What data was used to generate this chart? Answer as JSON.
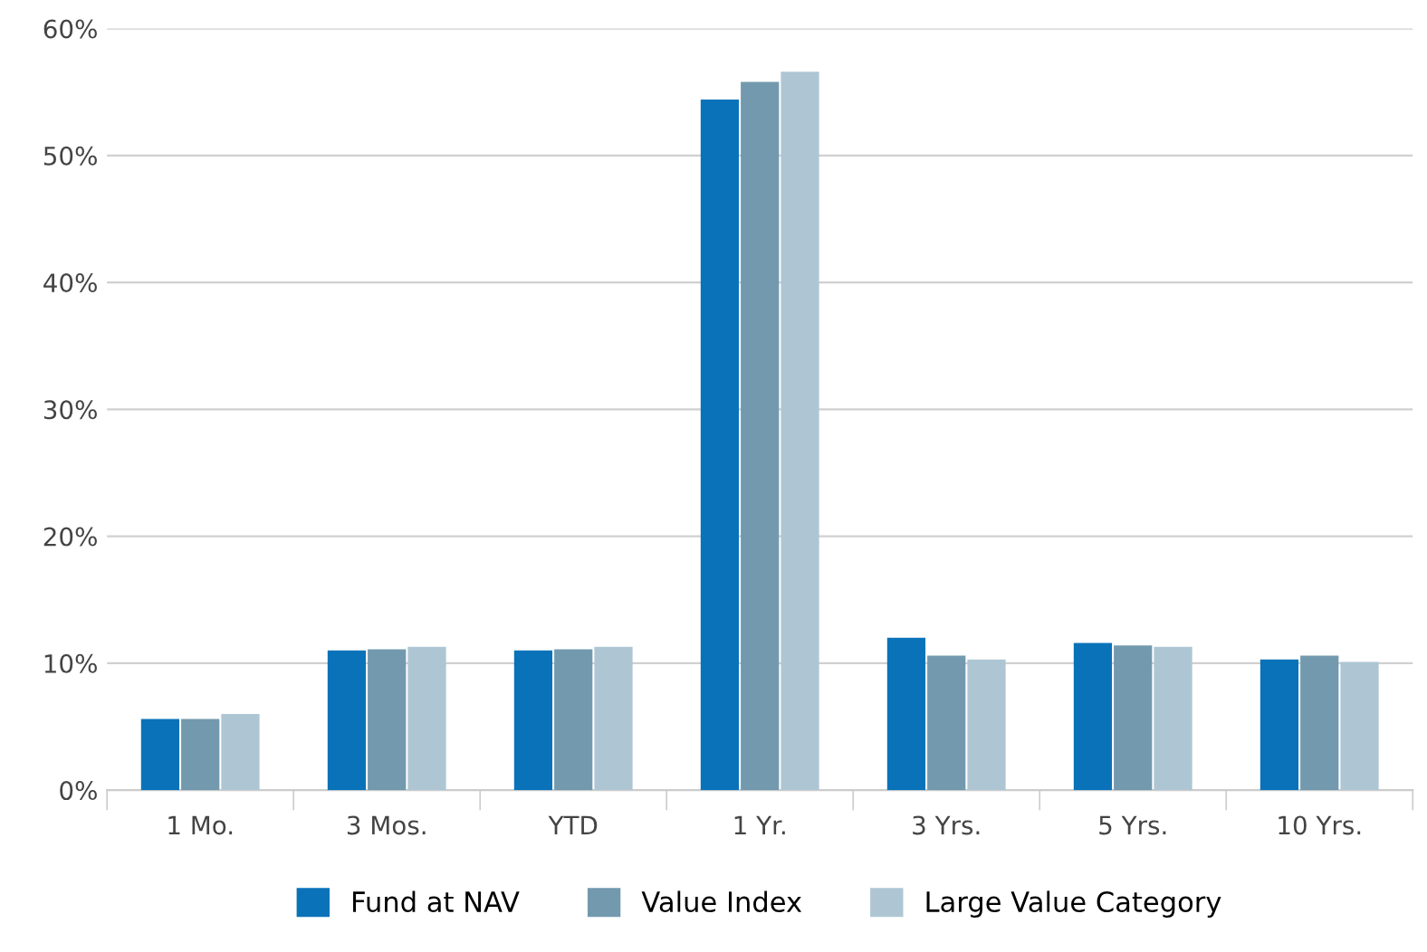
{
  "chart_data": {
    "type": "bar",
    "categories": [
      "1 Mo.",
      "3 Mos.",
      "YTD",
      "1 Yr.",
      "3 Yrs.",
      "5 Yrs.",
      "10 Yrs."
    ],
    "series": [
      {
        "name": "Fund at NAV",
        "color": "#0a72b9",
        "values": [
          5.6,
          11.0,
          11.0,
          54.4,
          12.0,
          11.6,
          10.3
        ]
      },
      {
        "name": "Value Index",
        "color": "#7399ae",
        "values": [
          5.6,
          11.1,
          11.1,
          55.8,
          10.6,
          11.4,
          10.6
        ]
      },
      {
        "name": "Large Value Category",
        "color": "#aec6d4",
        "values": [
          6.0,
          11.3,
          11.3,
          56.6,
          10.3,
          11.3,
          10.1
        ]
      }
    ],
    "ylim": [
      0,
      60
    ],
    "yticks": [
      {
        "value": 0,
        "label": "0%"
      },
      {
        "value": 10,
        "label": "10%"
      },
      {
        "value": 20,
        "label": "20%"
      },
      {
        "value": 30,
        "label": "30%"
      },
      {
        "value": 40,
        "label": "40%"
      },
      {
        "value": 50,
        "label": "50%"
      },
      {
        "value": 60,
        "label": "60%"
      }
    ],
    "grid": "y",
    "legend": "bottom"
  }
}
